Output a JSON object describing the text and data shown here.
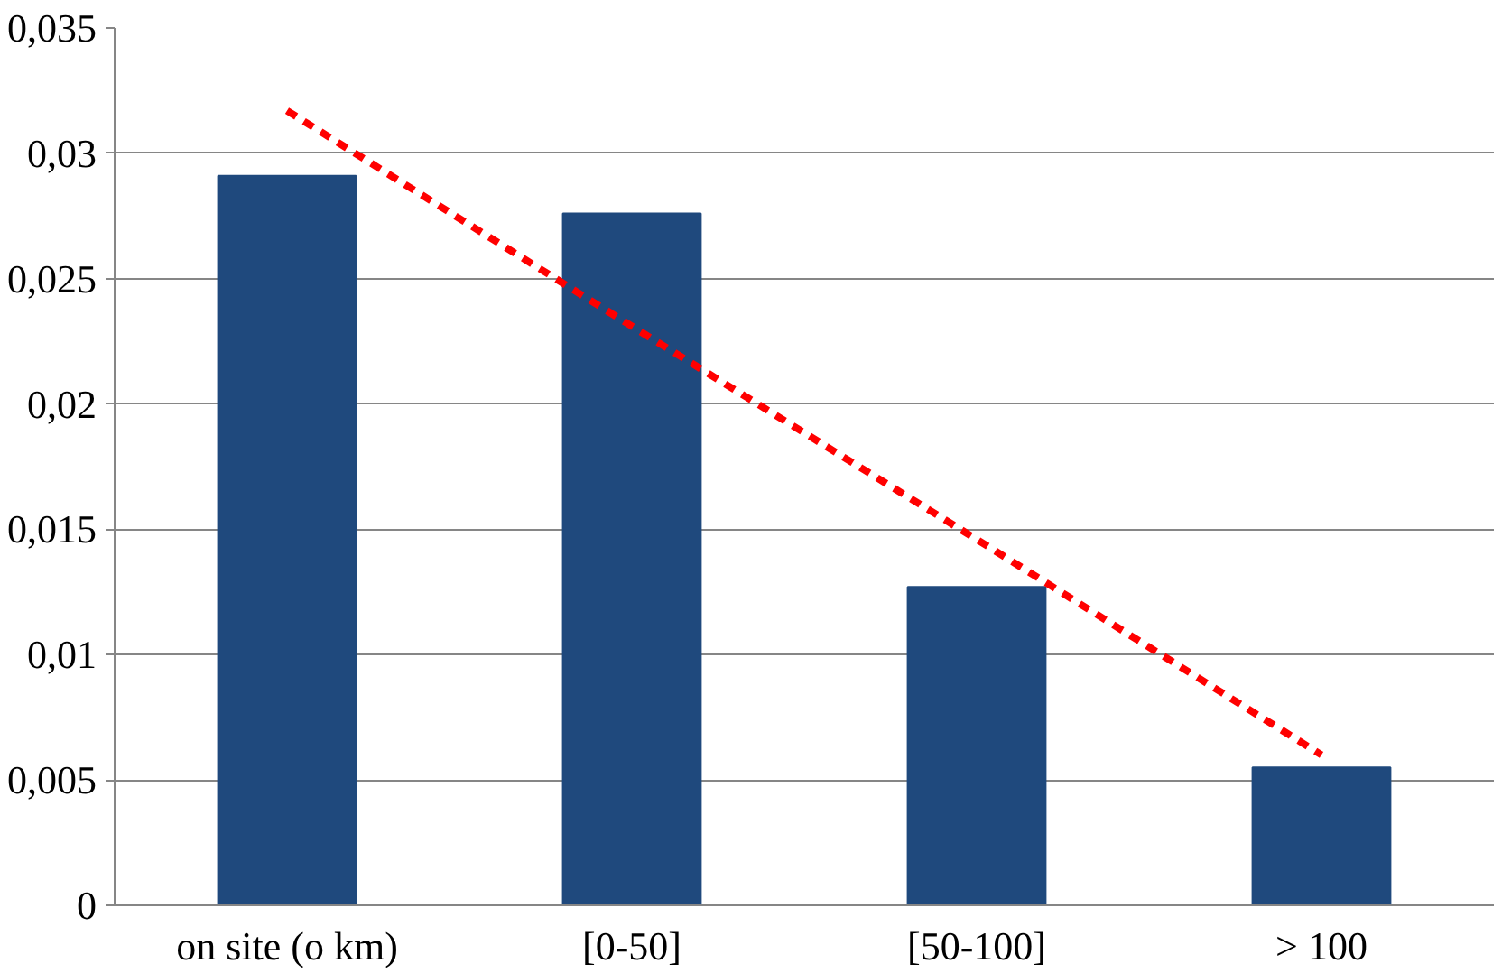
{
  "chart_data": {
    "type": "bar",
    "categories": [
      "on site (o km)",
      "[0-50]",
      "[50-100]",
      "> 100"
    ],
    "series": [
      {
        "color": "#1f497d",
        "values": [
          0.0291,
          0.0276,
          0.0127,
          0.0055
        ]
      },
      {
        "type": "line",
        "color": "#ff0000",
        "line_style": "dashed",
        "values": [
          0.0317,
          0.0231,
          0.0146,
          0.006
        ]
      }
    ],
    "ylim": [
      0,
      0.035
    ],
    "yticks": [
      0,
      {
        "value": 0.005,
        "label": "0,005"
      },
      {
        "value": 0.01,
        "label": "0,01"
      },
      {
        "value": 0.015,
        "label": "0,015"
      },
      {
        "value": 0.02,
        "label": "0,02"
      },
      {
        "value": 0.025,
        "label": "0,025"
      },
      {
        "value": 0.03,
        "label": "0,03"
      },
      {
        "value": 0.035,
        "label": "0,035"
      }
    ],
    "grid": "y"
  }
}
